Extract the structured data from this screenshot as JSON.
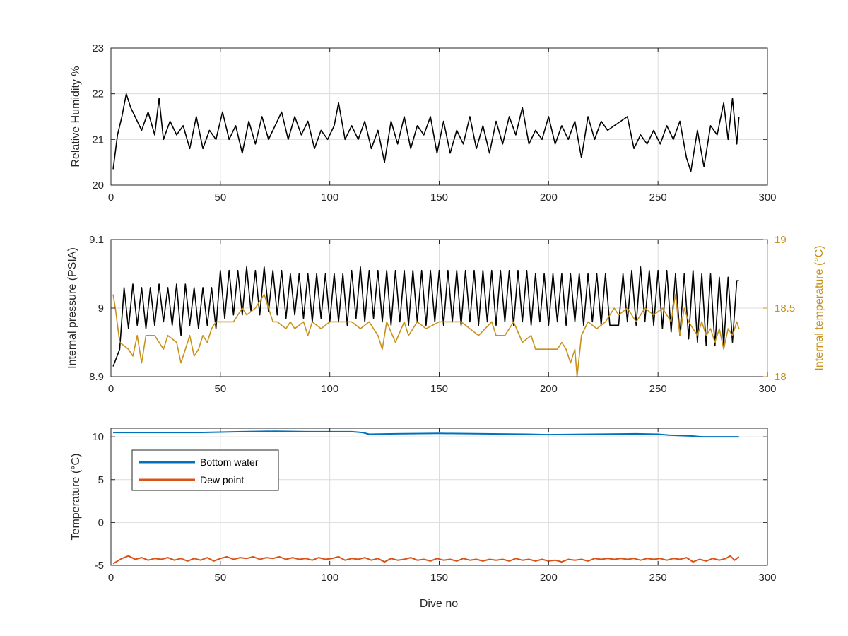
{
  "chart_data": [
    {
      "type": "line",
      "xlabel": "",
      "ylabel": "Relative Humidity %",
      "xlim": [
        0,
        300
      ],
      "ylim": [
        20,
        23
      ],
      "xticks": [
        "0",
        "50",
        "100",
        "150",
        "200",
        "250",
        "300"
      ],
      "yticks": [
        "20",
        "21",
        "22",
        "23"
      ],
      "grid": true,
      "series": [
        {
          "color": "#000000",
          "x": [
            1,
            3,
            5,
            7,
            9,
            11,
            14,
            17,
            20,
            22,
            24,
            27,
            30,
            33,
            36,
            39,
            42,
            45,
            48,
            51,
            54,
            57,
            60,
            63,
            66,
            69,
            72,
            75,
            78,
            81,
            84,
            87,
            90,
            93,
            96,
            99,
            102,
            104,
            107,
            110,
            113,
            116,
            119,
            122,
            125,
            128,
            131,
            134,
            137,
            140,
            143,
            146,
            149,
            152,
            155,
            158,
            161,
            164,
            167,
            170,
            173,
            176,
            179,
            182,
            185,
            188,
            191,
            194,
            197,
            200,
            203,
            206,
            209,
            212,
            215,
            218,
            221,
            224,
            227,
            230,
            233,
            236,
            239,
            242,
            245,
            248,
            251,
            254,
            257,
            260,
            263,
            265,
            268,
            271,
            274,
            277,
            280,
            282,
            284,
            286,
            287
          ],
          "values": [
            20.35,
            21.1,
            21.5,
            22.0,
            21.7,
            21.5,
            21.2,
            21.6,
            21.1,
            21.9,
            21.0,
            21.4,
            21.1,
            21.3,
            20.8,
            21.5,
            20.8,
            21.2,
            21.0,
            21.6,
            21.0,
            21.3,
            20.7,
            21.4,
            20.9,
            21.5,
            21.0,
            21.3,
            21.6,
            21.0,
            21.5,
            21.1,
            21.4,
            20.8,
            21.2,
            21.0,
            21.3,
            21.8,
            21.0,
            21.3,
            21.0,
            21.4,
            20.8,
            21.2,
            20.5,
            21.4,
            20.9,
            21.5,
            20.8,
            21.3,
            21.1,
            21.5,
            20.7,
            21.4,
            20.7,
            21.2,
            20.9,
            21.5,
            20.8,
            21.3,
            20.7,
            21.4,
            20.9,
            21.5,
            21.1,
            21.7,
            20.9,
            21.2,
            21.0,
            21.5,
            20.9,
            21.3,
            21.0,
            21.4,
            20.6,
            21.5,
            21.0,
            21.4,
            21.2,
            21.3,
            21.4,
            21.5,
            20.8,
            21.1,
            20.9,
            21.2,
            20.9,
            21.3,
            21.0,
            21.4,
            20.6,
            20.3,
            21.2,
            20.4,
            21.3,
            21.1,
            21.8,
            21.0,
            21.9,
            20.9,
            21.5
          ]
        }
      ]
    },
    {
      "type": "line",
      "xlabel": "",
      "ylabel": "Internal pressure (PSIA)",
      "ylabel_right": "Internal temperature (°C)",
      "xlim": [
        0,
        300
      ],
      "ylim": [
        8.9,
        9.1
      ],
      "ylim_right": [
        18,
        19
      ],
      "xticks": [
        "0",
        "50",
        "100",
        "150",
        "200",
        "250",
        "300"
      ],
      "yticks": [
        "8.9",
        "9",
        "9.1"
      ],
      "yticks_right": [
        "18",
        "18.5",
        "19"
      ],
      "grid": true,
      "series": [
        {
          "color": "#000000",
          "axis": "left",
          "x": [
            1,
            4,
            6,
            8,
            10,
            12,
            14,
            16,
            18,
            20,
            22,
            24,
            26,
            28,
            30,
            32,
            34,
            36,
            38,
            40,
            42,
            44,
            46,
            48,
            50,
            52,
            54,
            56,
            58,
            60,
            62,
            64,
            66,
            68,
            70,
            72,
            74,
            76,
            78,
            80,
            82,
            84,
            86,
            88,
            90,
            92,
            94,
            96,
            98,
            100,
            102,
            104,
            106,
            108,
            110,
            112,
            114,
            116,
            118,
            120,
            122,
            124,
            126,
            128,
            130,
            132,
            134,
            136,
            138,
            140,
            142,
            144,
            146,
            148,
            150,
            152,
            154,
            156,
            158,
            160,
            162,
            164,
            166,
            168,
            170,
            172,
            174,
            176,
            178,
            180,
            182,
            184,
            186,
            188,
            190,
            192,
            194,
            196,
            198,
            200,
            202,
            204,
            206,
            208,
            210,
            212,
            214,
            216,
            218,
            220,
            222,
            224,
            226,
            228,
            230,
            232,
            234,
            236,
            238,
            240,
            242,
            244,
            246,
            248,
            250,
            252,
            254,
            256,
            258,
            260,
            262,
            264,
            266,
            268,
            270,
            272,
            274,
            276,
            278,
            280,
            282,
            284,
            286,
            287
          ],
          "values": [
            8.915,
            8.94,
            9.03,
            8.97,
            9.035,
            8.975,
            9.03,
            8.97,
            9.03,
            8.975,
            9.035,
            8.98,
            9.03,
            8.975,
            9.035,
            8.96,
            9.035,
            8.975,
            9.03,
            8.97,
            9.03,
            8.975,
            9.03,
            8.97,
            9.055,
            8.985,
            9.055,
            8.99,
            9.055,
            8.99,
            9.06,
            8.995,
            9.055,
            8.99,
            9.06,
            8.995,
            9.055,
            8.99,
            9.055,
            8.985,
            9.05,
            8.99,
            9.05,
            8.985,
            9.05,
            8.98,
            9.05,
            8.985,
            9.05,
            8.98,
            9.05,
            8.98,
            9.05,
            8.975,
            9.055,
            8.985,
            9.06,
            8.98,
            9.055,
            8.985,
            9.055,
            8.98,
            9.055,
            8.975,
            9.055,
            8.98,
            9.055,
            8.975,
            9.055,
            8.98,
            9.055,
            8.975,
            9.055,
            8.98,
            9.055,
            8.975,
            9.055,
            8.98,
            9.055,
            8.975,
            9.055,
            8.98,
            9.055,
            8.975,
            9.055,
            8.98,
            9.055,
            8.975,
            9.055,
            8.98,
            9.055,
            8.975,
            9.055,
            8.98,
            9.055,
            8.975,
            9.05,
            8.98,
            9.05,
            8.975,
            9.05,
            8.98,
            9.05,
            8.975,
            9.05,
            8.98,
            9.05,
            8.975,
            9.05,
            8.98,
            9.05,
            8.975,
            9.05,
            8.975,
            8.975,
            8.975,
            9.05,
            8.98,
            9.055,
            8.975,
            9.06,
            8.98,
            9.055,
            8.975,
            9.055,
            8.97,
            9.055,
            8.965,
            9.05,
            8.96,
            9.05,
            8.955,
            9.055,
            8.95,
            9.05,
            8.945,
            9.05,
            8.945,
            9.045,
            8.945,
            9.045,
            8.95,
            9.04,
            9.04
          ]
        },
        {
          "color": "#c8921a",
          "axis": "right",
          "x": [
            1,
            2,
            4,
            8,
            10,
            12,
            14,
            16,
            20,
            24,
            26,
            30,
            32,
            34,
            36,
            38,
            40,
            42,
            44,
            46,
            48,
            56,
            60,
            62,
            66,
            70,
            72,
            74,
            76,
            80,
            82,
            84,
            88,
            90,
            92,
            96,
            100,
            104,
            110,
            114,
            118,
            122,
            124,
            126,
            130,
            134,
            136,
            140,
            144,
            150,
            154,
            160,
            164,
            168,
            174,
            176,
            180,
            184,
            188,
            192,
            194,
            200,
            204,
            206,
            208,
            210,
            212,
            213,
            214,
            215,
            218,
            222,
            226,
            230,
            232,
            236,
            240,
            244,
            248,
            252,
            256,
            258,
            260,
            262,
            264,
            266,
            268,
            270,
            272,
            274,
            276,
            278,
            280,
            282,
            284,
            286,
            287
          ],
          "values": [
            18.6,
            18.5,
            18.25,
            18.2,
            18.15,
            18.3,
            18.1,
            18.3,
            18.3,
            18.2,
            18.3,
            18.25,
            18.1,
            18.2,
            18.3,
            18.15,
            18.2,
            18.3,
            18.25,
            18.35,
            18.4,
            18.4,
            18.5,
            18.45,
            18.5,
            18.6,
            18.5,
            18.4,
            18.4,
            18.35,
            18.4,
            18.35,
            18.4,
            18.3,
            18.4,
            18.35,
            18.4,
            18.4,
            18.4,
            18.35,
            18.4,
            18.3,
            18.2,
            18.4,
            18.25,
            18.4,
            18.3,
            18.4,
            18.35,
            18.4,
            18.4,
            18.4,
            18.35,
            18.3,
            18.4,
            18.3,
            18.3,
            18.4,
            18.25,
            18.3,
            18.2,
            18.2,
            18.2,
            18.25,
            18.2,
            18.1,
            18.2,
            18.0,
            18.15,
            18.3,
            18.4,
            18.35,
            18.4,
            18.5,
            18.45,
            18.5,
            18.4,
            18.5,
            18.45,
            18.5,
            18.4,
            18.6,
            18.3,
            18.5,
            18.4,
            18.35,
            18.3,
            18.4,
            18.3,
            18.35,
            18.25,
            18.35,
            18.2,
            18.35,
            18.3,
            18.4,
            18.35
          ]
        }
      ]
    },
    {
      "type": "line",
      "xlabel": "Dive no",
      "ylabel": "Temperature (°C)",
      "xlim": [
        0,
        300
      ],
      "ylim": [
        -5,
        11
      ],
      "xticks": [
        "0",
        "50",
        "100",
        "150",
        "200",
        "250",
        "300"
      ],
      "yticks": [
        "-5",
        "0",
        "5",
        "10"
      ],
      "grid": true,
      "legend": "top-left",
      "series": [
        {
          "name": "Bottom water",
          "color": "#0072bd",
          "x": [
            1,
            20,
            40,
            60,
            75,
            90,
            110,
            115,
            118,
            130,
            150,
            170,
            190,
            200,
            220,
            240,
            250,
            255,
            265,
            270,
            287
          ],
          "values": [
            10.5,
            10.5,
            10.5,
            10.6,
            10.65,
            10.6,
            10.6,
            10.5,
            10.3,
            10.35,
            10.4,
            10.35,
            10.3,
            10.25,
            10.3,
            10.35,
            10.3,
            10.2,
            10.1,
            10.0,
            10.0
          ]
        },
        {
          "name": "Dew point",
          "color": "#d95319",
          "x": [
            1,
            3,
            5,
            8,
            11,
            14,
            17,
            20,
            23,
            26,
            29,
            32,
            35,
            38,
            41,
            44,
            47,
            50,
            53,
            56,
            59,
            62,
            65,
            68,
            71,
            74,
            77,
            80,
            83,
            86,
            89,
            92,
            95,
            98,
            101,
            104,
            107,
            110,
            113,
            116,
            119,
            122,
            125,
            128,
            131,
            134,
            137,
            140,
            143,
            146,
            149,
            152,
            155,
            158,
            161,
            164,
            167,
            170,
            173,
            176,
            179,
            182,
            185,
            188,
            191,
            194,
            197,
            200,
            203,
            206,
            209,
            212,
            215,
            218,
            221,
            224,
            227,
            230,
            233,
            236,
            239,
            242,
            245,
            248,
            251,
            254,
            257,
            260,
            263,
            266,
            269,
            272,
            275,
            278,
            281,
            283,
            285,
            287
          ],
          "values": [
            -4.8,
            -4.5,
            -4.2,
            -3.9,
            -4.3,
            -4.1,
            -4.4,
            -4.2,
            -4.3,
            -4.1,
            -4.4,
            -4.2,
            -4.5,
            -4.2,
            -4.4,
            -4.1,
            -4.5,
            -4.2,
            -4.0,
            -4.3,
            -4.1,
            -4.2,
            -4.0,
            -4.3,
            -4.1,
            -4.2,
            -4.0,
            -4.3,
            -4.1,
            -4.3,
            -4.2,
            -4.4,
            -4.1,
            -4.3,
            -4.2,
            -4.0,
            -4.4,
            -4.2,
            -4.3,
            -4.1,
            -4.4,
            -4.2,
            -4.6,
            -4.2,
            -4.4,
            -4.3,
            -4.1,
            -4.4,
            -4.3,
            -4.5,
            -4.2,
            -4.4,
            -4.3,
            -4.5,
            -4.2,
            -4.4,
            -4.3,
            -4.5,
            -4.3,
            -4.4,
            -4.3,
            -4.5,
            -4.2,
            -4.4,
            -4.3,
            -4.5,
            -4.3,
            -4.5,
            -4.4,
            -4.6,
            -4.3,
            -4.4,
            -4.3,
            -4.5,
            -4.2,
            -4.3,
            -4.2,
            -4.3,
            -4.2,
            -4.3,
            -4.2,
            -4.4,
            -4.2,
            -4.3,
            -4.2,
            -4.4,
            -4.2,
            -4.3,
            -4.1,
            -4.6,
            -4.3,
            -4.5,
            -4.2,
            -4.4,
            -4.2,
            -3.9,
            -4.4,
            -4.0
          ]
        }
      ]
    }
  ]
}
